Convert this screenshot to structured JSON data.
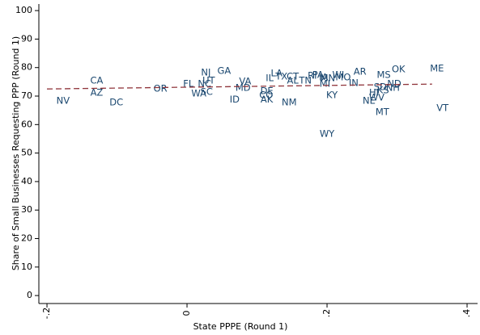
{
  "chart_data": {
    "type": "scatter",
    "x_label": "State PPPE (Round 1)",
    "y_label": "Share of Small Businesses Requesting PPP (Round 1)",
    "xlim": [
      -0.2116,
      0.415
    ],
    "ylim": [
      -2.8,
      102.3
    ],
    "xticks": [
      {
        "value": -0.2,
        "label": "-.2"
      },
      0,
      {
        "value": 0.2,
        "label": ".2"
      },
      {
        "value": 0.4,
        "label": ".4"
      }
    ],
    "yticks": [
      0,
      10,
      20,
      30,
      40,
      50,
      60,
      70,
      80,
      90,
      100
    ],
    "color": "#1a476f",
    "labels": [
      "NV",
      "CA",
      "AZ",
      "DC",
      "OR",
      "FL",
      "NJ",
      "NC",
      "UT",
      "SC",
      "WA",
      "GA",
      "VA",
      "MD",
      "ID",
      "DE",
      "CO",
      "AK",
      "NM",
      "IL",
      "LA",
      "TX",
      "CT",
      "AL",
      "TN",
      "RI",
      "PA",
      "IA",
      "MN",
      "WI",
      "MO",
      "MI",
      "KY",
      "IN",
      "AR",
      "WY",
      "MS",
      "OK",
      "ME",
      "ND",
      "SD",
      "NH",
      "KS",
      "HI",
      "NE",
      "WV",
      "MT",
      "VT"
    ],
    "x": [
      -0.177,
      -0.129,
      -0.129,
      -0.101,
      -0.038,
      0.002,
      0.027,
      0.025,
      0.031,
      0.028,
      0.017,
      0.053,
      0.083,
      0.08,
      0.068,
      0.114,
      0.113,
      0.114,
      0.146,
      0.118,
      0.128,
      0.135,
      0.151,
      0.151,
      0.169,
      0.179,
      0.187,
      0.195,
      0.201,
      0.216,
      0.223,
      0.197,
      0.207,
      0.238,
      0.247,
      0.2,
      0.281,
      0.302,
      0.357,
      0.296,
      0.276,
      0.294,
      0.28,
      0.267,
      0.26,
      0.271,
      0.279,
      0.365
    ],
    "y": [
      68.3,
      75.4,
      71.1,
      67.7,
      72.5,
      74.2,
      78.2,
      74.2,
      75.4,
      71.4,
      70.8,
      78.8,
      75.1,
      72.8,
      68.8,
      71.7,
      70.3,
      68.8,
      67.7,
      76.2,
      77.9,
      76.8,
      76.8,
      75.4,
      75.4,
      77.1,
      77.3,
      76.5,
      76.2,
      77.3,
      76.5,
      74.2,
      70.3,
      74.5,
      78.5,
      56.7,
      77.3,
      79.3,
      79.6,
      74.2,
      73.1,
      72.8,
      72.0,
      71.1,
      68.3,
      69.4,
      64.3,
      65.7
    ],
    "fit_line": {
      "x": [
        -0.2,
        0.35
      ],
      "y": [
        72.5,
        74.2
      ],
      "color": "#90353b"
    }
  }
}
